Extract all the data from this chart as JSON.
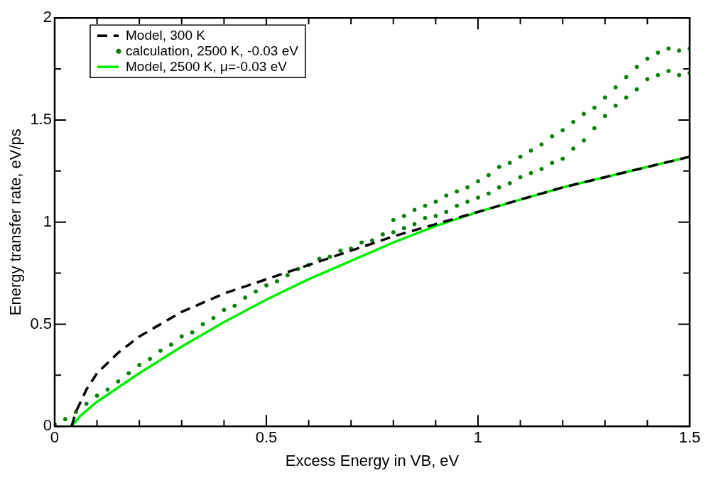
{
  "chart_data": {
    "type": "line",
    "xlabel": "Excess Energy in VB, eV",
    "ylabel": "Energy transfer rate, eV/ps",
    "xlim": [
      0,
      1.5
    ],
    "ylim": [
      0,
      2
    ],
    "xticks": [
      0,
      {
        "value": 0.1,
        "label": null
      },
      {
        "value": 0.2,
        "label": null
      },
      {
        "value": 0.3,
        "label": null
      },
      {
        "value": 0.4,
        "label": null
      },
      0.5,
      {
        "value": 0.6,
        "label": null
      },
      {
        "value": 0.7,
        "label": null
      },
      {
        "value": 0.8,
        "label": null
      },
      {
        "value": 0.9,
        "label": null
      },
      1,
      {
        "value": 1.1,
        "label": null
      },
      {
        "value": 1.2,
        "label": null
      },
      {
        "value": 1.3,
        "label": null
      },
      {
        "value": 1.4,
        "label": null
      },
      1.5
    ],
    "yticks": [
      0,
      {
        "value": 0.25,
        "label": null
      },
      0.5,
      {
        "value": 0.75,
        "label": null
      },
      1,
      {
        "value": 1.25,
        "label": null
      },
      1.5,
      {
        "value": 1.75,
        "label": null
      },
      2
    ],
    "legend": "top left",
    "grid": false,
    "series": [
      {
        "name": "Model, 300 K",
        "type": "line",
        "color": "#000000",
        "line_style": "dashed",
        "marker": "none",
        "x": [
          0.04,
          0.05,
          0.075,
          0.1,
          0.15,
          0.2,
          0.3,
          0.4,
          0.5,
          0.6,
          0.7,
          0.8,
          0.9,
          1.0,
          1.1,
          1.2,
          1.3,
          1.4,
          1.5
        ],
        "values": [
          0,
          0.07,
          0.18,
          0.26,
          0.36,
          0.44,
          0.56,
          0.65,
          0.72,
          0.79,
          0.86,
          0.93,
          0.99,
          1.05,
          1.11,
          1.17,
          1.22,
          1.27,
          1.32
        ]
      },
      {
        "name": "calculation, 2500 K, -0.03 eV",
        "type": "scatter",
        "color": "#008000",
        "marker": "circle",
        "x": [
          0,
          0.025,
          0.05,
          0.075,
          0.1,
          0.125,
          0.15,
          0.175,
          0.2,
          0.225,
          0.25,
          0.275,
          0.3,
          0.325,
          0.35,
          0.375,
          0.4,
          0.425,
          0.45,
          0.475,
          0.5,
          0.525,
          0.55,
          0.575,
          0.6,
          0.625,
          0.65,
          0.675,
          0.7,
          0.725,
          0.75,
          0.775,
          0.8,
          0.825,
          0.85,
          0.875,
          0.9,
          0.925,
          0.95,
          0.975,
          1.0,
          1.025,
          1.05,
          1.075,
          1.1,
          1.125,
          1.15,
          1.175,
          1.2,
          1.225,
          1.25,
          1.275,
          1.3,
          1.325,
          1.35,
          1.375,
          1.4,
          1.425,
          1.45,
          1.475,
          1.5,
          0.8,
          0.825,
          0.85,
          0.875,
          0.9,
          0.925,
          0.95,
          0.975,
          1.0,
          1.025,
          1.05,
          1.075,
          1.1,
          1.125,
          1.15,
          1.175,
          1.2,
          1.225,
          1.25,
          1.275,
          1.3,
          1.325,
          1.35,
          1.375,
          1.4,
          1.425,
          1.45,
          1.475,
          1.5
        ],
        "values": [
          0.01,
          0.035,
          0.07,
          0.11,
          0.15,
          0.18,
          0.22,
          0.26,
          0.3,
          0.33,
          0.37,
          0.4,
          0.44,
          0.46,
          0.5,
          0.53,
          0.57,
          0.59,
          0.63,
          0.66,
          0.69,
          0.71,
          0.74,
          0.77,
          0.79,
          0.82,
          0.83,
          0.86,
          0.87,
          0.9,
          0.91,
          0.94,
          0.95,
          0.97,
          0.99,
          1.02,
          1.03,
          1.05,
          1.08,
          1.1,
          1.12,
          1.14,
          1.17,
          1.19,
          1.22,
          1.24,
          1.26,
          1.29,
          1.31,
          1.36,
          1.4,
          1.46,
          1.52,
          1.57,
          1.61,
          1.65,
          1.7,
          1.72,
          1.74,
          1.72,
          1.73,
          1.01,
          1.03,
          1.06,
          1.08,
          1.1,
          1.13,
          1.15,
          1.17,
          1.2,
          1.23,
          1.27,
          1.29,
          1.32,
          1.35,
          1.38,
          1.42,
          1.45,
          1.49,
          1.53,
          1.56,
          1.61,
          1.66,
          1.71,
          1.76,
          1.8,
          1.83,
          1.85,
          1.84,
          1.85
        ]
      },
      {
        "name": "Model, 2500 K, μ=-0.03 eV",
        "type": "line",
        "color": "#00ee00",
        "line_style": "solid",
        "marker": "none",
        "x": [
          0.04,
          0.06,
          0.1,
          0.2,
          0.3,
          0.4,
          0.5,
          0.6,
          0.7,
          0.8,
          0.9,
          1.0,
          1.1,
          1.2,
          1.3,
          1.4,
          1.5
        ],
        "values": [
          0,
          0.05,
          0.12,
          0.26,
          0.39,
          0.51,
          0.62,
          0.72,
          0.81,
          0.9,
          0.98,
          1.05,
          1.11,
          1.17,
          1.22,
          1.27,
          1.32
        ]
      }
    ]
  }
}
